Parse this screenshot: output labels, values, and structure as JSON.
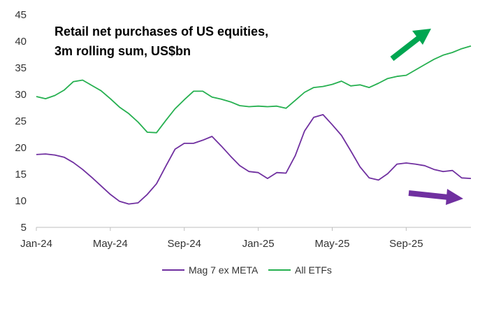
{
  "chart_data": {
    "type": "line",
    "title_lines": [
      "Retail net purchases of US equities,",
      "3m rolling sum, US$bn"
    ],
    "xlabel": "",
    "ylabel": "",
    "ylim": [
      5,
      45
    ],
    "y_ticks": [
      5,
      10,
      15,
      20,
      25,
      30,
      35,
      40,
      45
    ],
    "x_ticks": [
      "Jan-24",
      "May-24",
      "Sep-24",
      "Jan-25",
      "May-25",
      "Sep-25"
    ],
    "x_tick_months": [
      0,
      4,
      8,
      12,
      16,
      20
    ],
    "x_range_months": [
      0,
      23.5
    ],
    "grid": false,
    "legend_position": "bottom",
    "series": [
      {
        "name": "Mag 7 ex META",
        "color": "#7030A0",
        "x": [
          0,
          0.5,
          1,
          1.5,
          2,
          2.5,
          3,
          3.5,
          4,
          4.5,
          5,
          5.5,
          6,
          6.5,
          7,
          7.5,
          8,
          8.5,
          9,
          9.5,
          10,
          10.5,
          11,
          11.5,
          12,
          12.5,
          13,
          13.5,
          14,
          14.5,
          15,
          15.5,
          16,
          16.5,
          17,
          17.5,
          18,
          18.5,
          19,
          19.5,
          20,
          20.5,
          21,
          21.5,
          22,
          22.5,
          23,
          23.5
        ],
        "values": [
          18.7,
          18.8,
          18.6,
          18.2,
          17.2,
          15.9,
          14.4,
          12.8,
          11.2,
          9.9,
          9.4,
          9.6,
          11.2,
          13.2,
          16.5,
          19.7,
          20.8,
          20.8,
          21.4,
          22.1,
          20.3,
          18.4,
          16.6,
          15.5,
          15.3,
          14.2,
          15.3,
          15.2,
          18.5,
          23.1,
          25.7,
          26.2,
          24.3,
          22.3,
          19.4,
          16.4,
          14.3,
          13.9,
          15.1,
          16.9,
          17.1,
          16.9,
          16.6,
          15.9,
          15.5,
          15.7,
          14.3,
          14.2
        ]
      },
      {
        "name": "All ETFs",
        "color": "#26B050",
        "x": [
          0,
          0.5,
          1,
          1.5,
          2,
          2.5,
          3,
          3.5,
          4,
          4.5,
          5,
          5.5,
          6,
          6.5,
          7,
          7.5,
          8,
          8.5,
          9,
          9.5,
          10,
          10.5,
          11,
          11.5,
          12,
          12.5,
          13,
          13.5,
          14,
          14.5,
          15,
          15.5,
          16,
          16.5,
          17,
          17.5,
          18,
          18.5,
          19,
          19.5,
          20,
          20.5,
          21,
          21.5,
          22,
          22.5,
          23,
          23.5
        ],
        "values": [
          29.6,
          29.2,
          29.8,
          30.8,
          32.4,
          32.7,
          31.7,
          30.7,
          29.2,
          27.6,
          26.4,
          24.8,
          22.9,
          22.8,
          25.1,
          27.3,
          29.0,
          30.6,
          30.6,
          29.5,
          29.1,
          28.6,
          27.9,
          27.7,
          27.8,
          27.7,
          27.8,
          27.4,
          28.9,
          30.4,
          31.3,
          31.5,
          31.9,
          32.5,
          31.6,
          31.8,
          31.3,
          32.1,
          33.0,
          33.4,
          33.6,
          34.6,
          35.6,
          36.6,
          37.4,
          37.9,
          38.6,
          39.1
        ]
      }
    ],
    "annotations": [
      {
        "name": "up-arrow",
        "color": "#00A651"
      },
      {
        "name": "right-arrow",
        "color": "#7030A0"
      }
    ]
  }
}
